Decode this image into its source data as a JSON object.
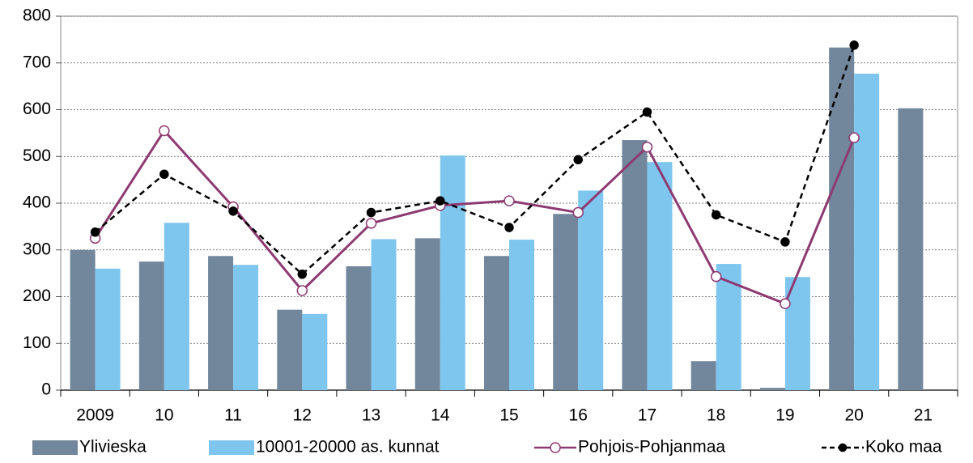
{
  "chart_data": {
    "type": "bar",
    "categories": [
      "2009",
      "10",
      "11",
      "12",
      "13",
      "14",
      "15",
      "16",
      "17",
      "18",
      "19",
      "20",
      "21"
    ],
    "series": [
      {
        "name": "Ylivieska",
        "type": "bar",
        "color": "#72879c",
        "values": [
          300,
          275,
          287,
          172,
          265,
          325,
          287,
          377,
          535,
          62,
          5,
          733,
          603
        ]
      },
      {
        "name": "10001-20000 as. kunnat",
        "type": "bar",
        "color": "#7fc6ee",
        "values": [
          260,
          358,
          268,
          163,
          323,
          502,
          322,
          427,
          488,
          270,
          242,
          677,
          null
        ]
      },
      {
        "name": "Pohjois-Pohjanmaa",
        "type": "line",
        "color": "#8e3a72",
        "marker": "open",
        "dashed": false,
        "values": [
          325,
          555,
          392,
          213,
          357,
          395,
          405,
          380,
          520,
          243,
          185,
          540,
          null
        ]
      },
      {
        "name": "Koko maa",
        "type": "line",
        "color": "#000000",
        "marker": "filled",
        "dashed": true,
        "values": [
          338,
          462,
          383,
          248,
          380,
          405,
          348,
          493,
          595,
          375,
          317,
          738,
          null
        ]
      }
    ],
    "ylim": [
      0,
      800
    ],
    "yticks": [
      0,
      100,
      200,
      300,
      400,
      500,
      600,
      700,
      800
    ],
    "grid": true,
    "legend": "bottom"
  }
}
